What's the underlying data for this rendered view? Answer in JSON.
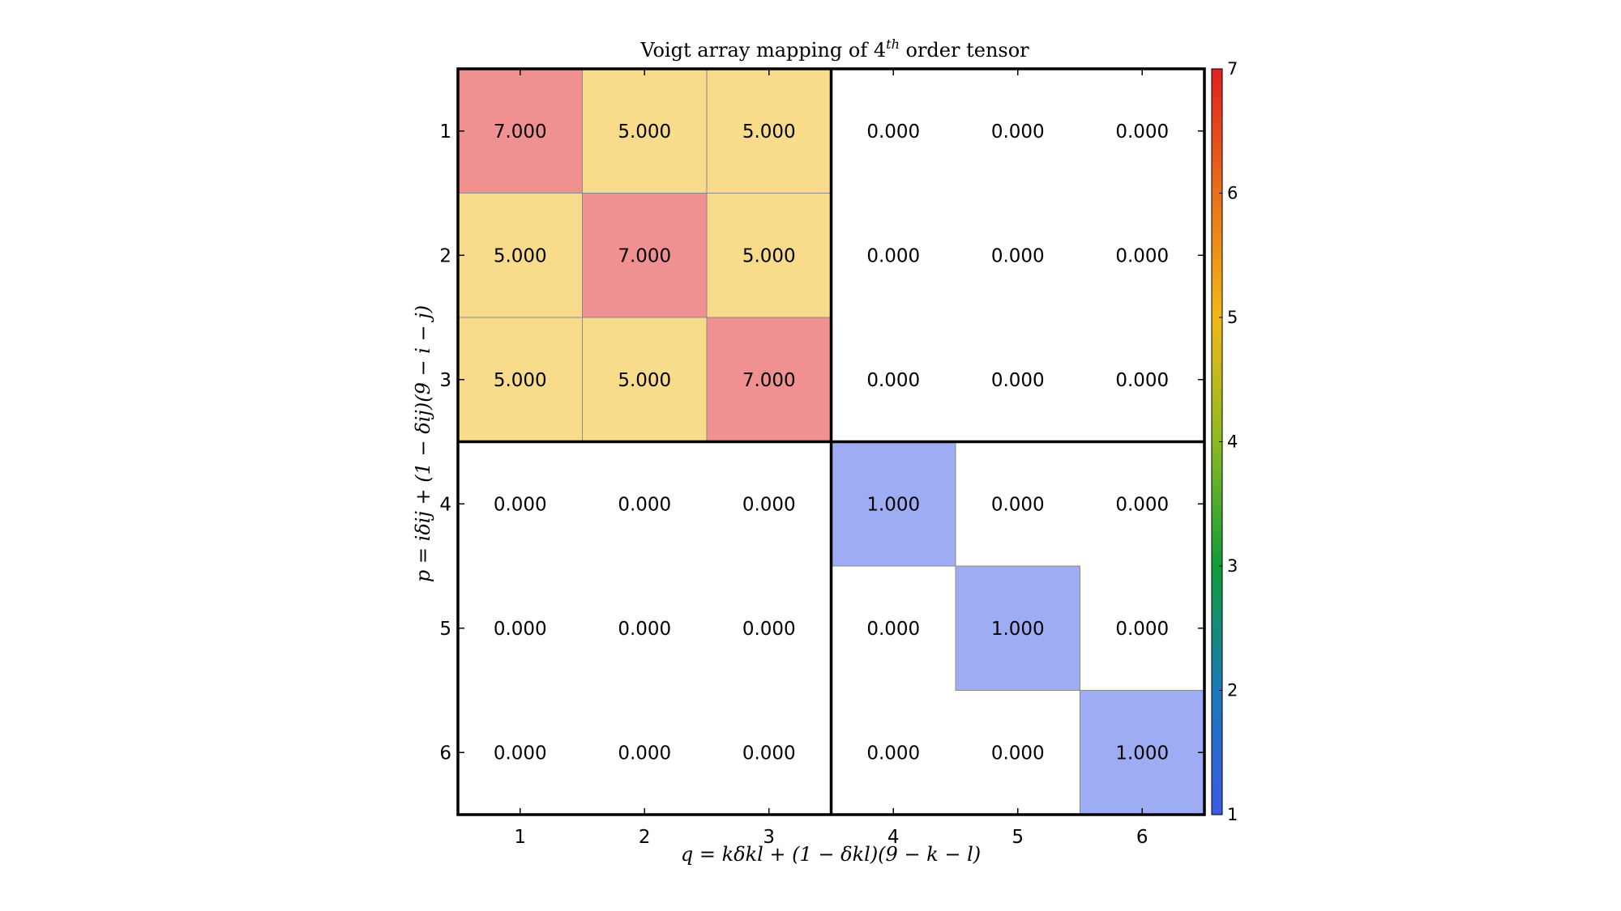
{
  "chart_data": {
    "type": "heatmap",
    "title": {
      "prefix": "Voigt array mapping of 4",
      "superscript": "th",
      "suffix": " order tensor"
    },
    "xlabel": "q = kδkl + (1 − δkl)(9 − k − l)",
    "ylabel": "p = iδij + (1 − δij)(9 − i − j)",
    "x_categories": [
      "1",
      "2",
      "3",
      "4",
      "5",
      "6"
    ],
    "y_categories": [
      "1",
      "2",
      "3",
      "4",
      "5",
      "6"
    ],
    "values": [
      [
        7,
        5,
        5,
        0,
        0,
        0
      ],
      [
        5,
        7,
        5,
        0,
        0,
        0
      ],
      [
        5,
        5,
        7,
        0,
        0,
        0
      ],
      [
        0,
        0,
        0,
        1,
        0,
        0
      ],
      [
        0,
        0,
        0,
        0,
        1,
        0
      ],
      [
        0,
        0,
        0,
        0,
        0,
        1
      ]
    ],
    "cell_labels": [
      [
        "7.000",
        "5.000",
        "5.000",
        "0.000",
        "0.000",
        "0.000"
      ],
      [
        "5.000",
        "7.000",
        "5.000",
        "0.000",
        "0.000",
        "0.000"
      ],
      [
        "5.000",
        "5.000",
        "7.000",
        "0.000",
        "0.000",
        "0.000"
      ],
      [
        "0.000",
        "0.000",
        "0.000",
        "1.000",
        "0.000",
        "0.000"
      ],
      [
        "0.000",
        "0.000",
        "0.000",
        "0.000",
        "1.000",
        "0.000"
      ],
      [
        "0.000",
        "0.000",
        "0.000",
        "0.000",
        "0.000",
        "1.000"
      ]
    ],
    "zero_cells": "blank",
    "colormap": "rainbow",
    "cell_alpha": 0.5,
    "colorbar": {
      "range": [
        1,
        7
      ],
      "ticks": [
        "1",
        "2",
        "3",
        "4",
        "5",
        "6",
        "7"
      ],
      "stops": [
        "#3c5ae6",
        "#1a7ab8",
        "#0e9c3a",
        "#8cba20",
        "#f0b818",
        "#e8701a",
        "#e02020"
      ]
    },
    "block_dividers": {
      "after_row": 3,
      "after_col": 3
    },
    "grid": false
  }
}
